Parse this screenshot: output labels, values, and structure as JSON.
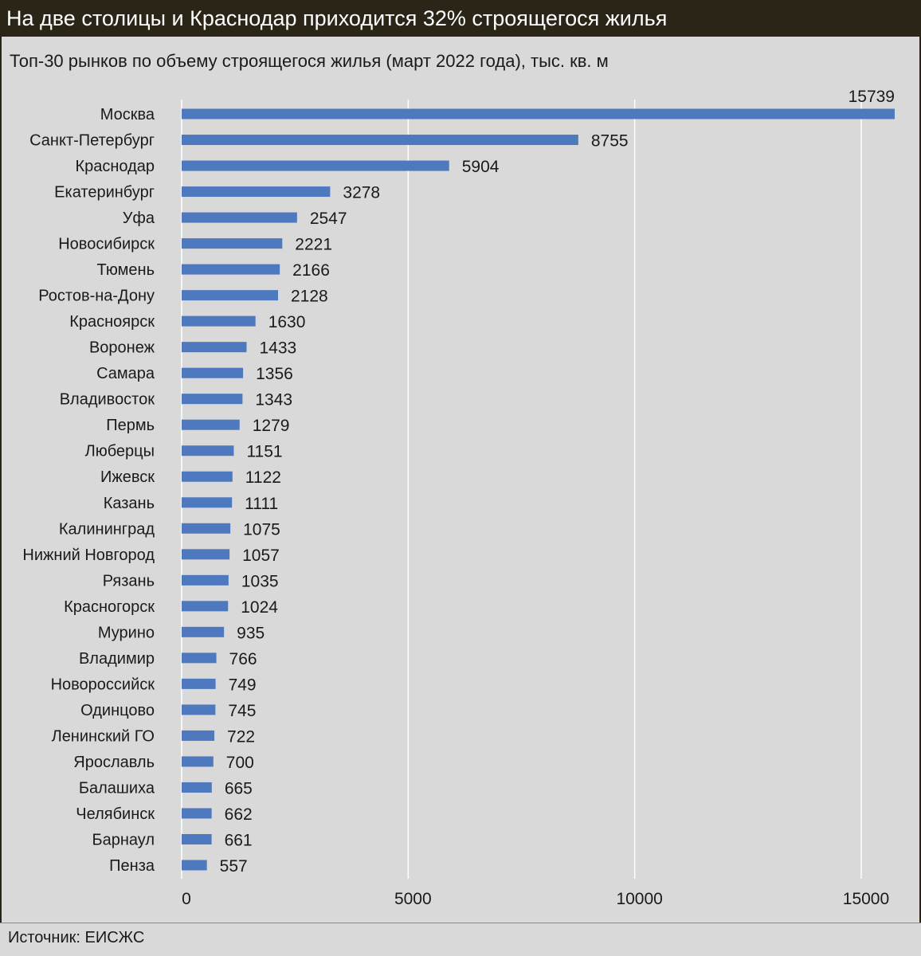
{
  "header": {
    "title": "На две столицы и Краснодар приходится 32% строящегося жилья"
  },
  "subtitle": "Топ-30 рынков по объему строящегося жилья (март 2022 года), тыс. кв. м",
  "source": "Источник: ЕИСЖС",
  "colors": {
    "bar": "#4f79be",
    "grid": "#ffffff",
    "header_bg": "#2b2518",
    "background": "#d9d9d9"
  },
  "chart_data": {
    "type": "bar",
    "orientation": "horizontal",
    "categories": [
      "Москва",
      "Санкт-Петербург",
      "Краснодар",
      "Екатеринбург",
      "Уфа",
      "Новосибирск",
      "Тюмень",
      "Ростов-на-Дону",
      "Красноярск",
      "Воронеж",
      "Самара",
      "Владивосток",
      "Пермь",
      "Люберцы",
      "Ижевск",
      "Казань",
      "Калининград",
      "Нижний Новгород",
      "Рязань",
      "Красногорск",
      "Мурино",
      "Владимир",
      "Новороссийск",
      "Одинцово",
      "Ленинский ГО",
      "Ярославль",
      "Балашиха",
      "Челябинск",
      "Барнаул",
      "Пенза"
    ],
    "values": [
      15739,
      8755,
      5904,
      3278,
      2547,
      2221,
      2166,
      2128,
      1630,
      1433,
      1356,
      1343,
      1279,
      1151,
      1122,
      1111,
      1075,
      1057,
      1035,
      1024,
      935,
      766,
      749,
      745,
      722,
      700,
      665,
      662,
      661,
      557
    ],
    "xlim": [
      0,
      15739
    ],
    "xticks": [
      0,
      5000,
      10000,
      15000
    ],
    "xtick_labels": [
      "0",
      "5000",
      "10000",
      "15000"
    ],
    "grid": true,
    "data_labels": true
  }
}
